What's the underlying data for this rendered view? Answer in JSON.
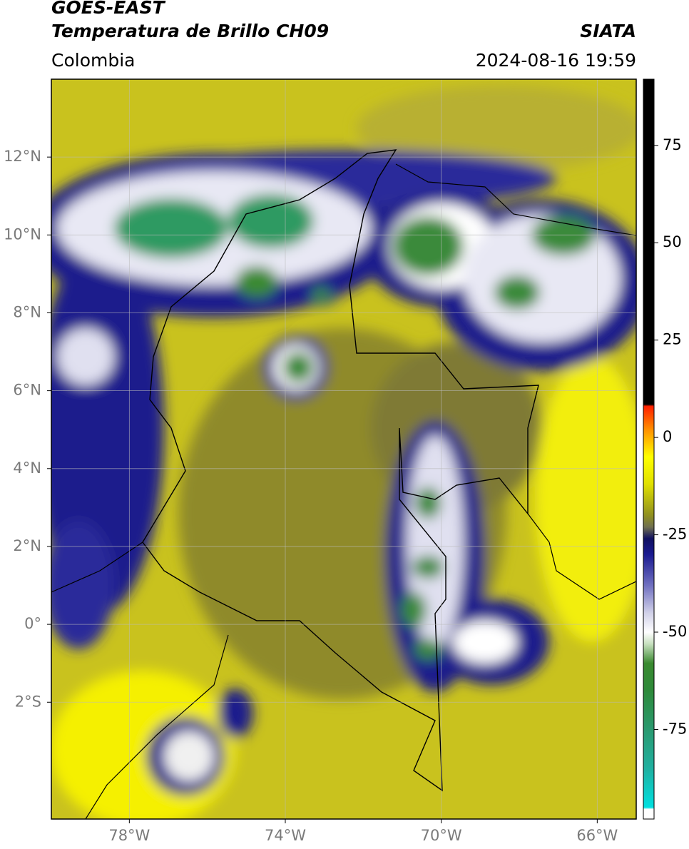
{
  "header": {
    "title_1": "GOES-EAST",
    "title_2": "Temperatura de Brillo CH09",
    "source": "SIATA",
    "region": "Colombia",
    "datetime": "2024-08-16 19:59"
  },
  "map": {
    "type": "map",
    "lon_range": [
      -80,
      -65
    ],
    "lat_range": [
      -5,
      14
    ],
    "lon_ticks": [
      {
        "value": -78,
        "label": "78°W"
      },
      {
        "value": -74,
        "label": "74°W"
      },
      {
        "value": -70,
        "label": "70°W"
      },
      {
        "value": -66,
        "label": "66°W"
      }
    ],
    "lat_ticks": [
      {
        "value": 12,
        "label": "12°N"
      },
      {
        "value": 10,
        "label": "10°N"
      },
      {
        "value": 8,
        "label": "8°N"
      },
      {
        "value": 6,
        "label": "6°N"
      },
      {
        "value": 4,
        "label": "4°N"
      },
      {
        "value": 2,
        "label": "2°N"
      },
      {
        "value": 0,
        "label": "0°"
      },
      {
        "value": -2,
        "label": "2°S"
      }
    ],
    "grid": true
  },
  "colorbar": {
    "range": [
      -98,
      92
    ],
    "ticks": [
      75,
      50,
      25,
      0,
      -25,
      -50,
      -75
    ],
    "colormap": [
      {
        "value": -98,
        "color": "#ffffff"
      },
      {
        "value": -95.5,
        "color": "#ffffff"
      },
      {
        "value": -95,
        "color": "#00e0e0"
      },
      {
        "value": -85,
        "color": "#20b0a0"
      },
      {
        "value": -75,
        "color": "#2a9a70"
      },
      {
        "value": -65,
        "color": "#2e8a3a"
      },
      {
        "value": -58,
        "color": "#3a8a30"
      },
      {
        "value": -53,
        "color": "#c8e0c0"
      },
      {
        "value": -50,
        "color": "#ffffff"
      },
      {
        "value": -45,
        "color": "#d0d0e8"
      },
      {
        "value": -38,
        "color": "#7070c0"
      },
      {
        "value": -30,
        "color": "#1a1a90"
      },
      {
        "value": -26,
        "color": "#101060"
      },
      {
        "value": -23,
        "color": "#707050"
      },
      {
        "value": -20,
        "color": "#909020"
      },
      {
        "value": -12,
        "color": "#e0e000"
      },
      {
        "value": -5,
        "color": "#ffff00"
      },
      {
        "value": 2,
        "color": "#ff9000"
      },
      {
        "value": 8,
        "color": "#ff2000"
      },
      {
        "value": 8.5,
        "color": "#000000"
      },
      {
        "value": 92,
        "color": "#000000"
      }
    ]
  }
}
